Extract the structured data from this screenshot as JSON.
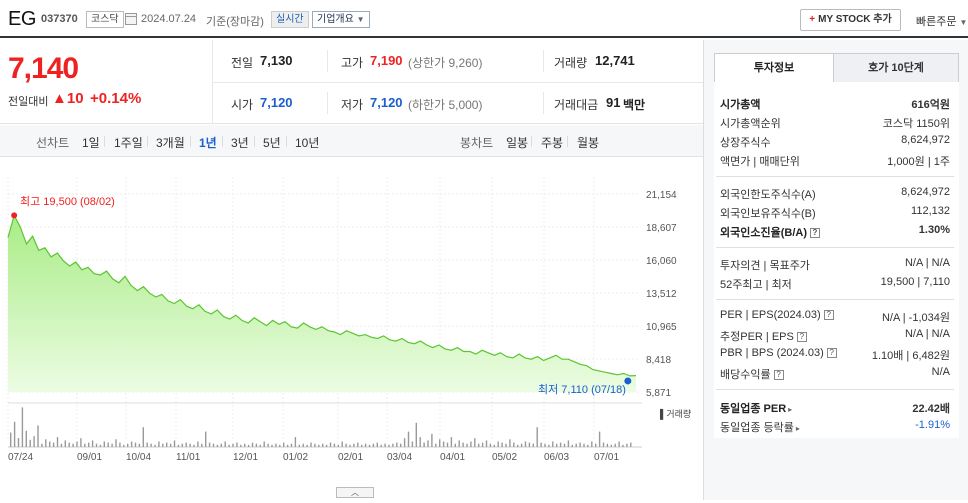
{
  "header": {
    "company_name": "EG",
    "code": "037370",
    "market": "코스닥",
    "date": "2024.07.24",
    "date_note": "기준(장마감)",
    "realtime": "실시간",
    "overview_label": "기업개요",
    "mystock_label": "MY STOCK 추가",
    "quick_order_label": "빠른주문"
  },
  "summary": {
    "current_price": "7,140",
    "prev_label": "전일대비",
    "change_arrow": "▲",
    "change_value": "10",
    "change_pct": "+0.14%",
    "row1": [
      {
        "label": "전일",
        "value": "7,130",
        "color": "black",
        "sub": ""
      },
      {
        "label": "고가",
        "value": "7,190",
        "color": "red",
        "sub": "(상한가 9,260)"
      },
      {
        "label": "거래량",
        "value": "12,741",
        "color": "black",
        "sub": ""
      }
    ],
    "row2": [
      {
        "label": "시가",
        "value": "7,120",
        "color": "blue",
        "sub": ""
      },
      {
        "label": "저가",
        "value": "7,120",
        "color": "blue",
        "sub": "(하한가 5,000)"
      },
      {
        "label": "거래대금",
        "value": "91",
        "color": "black",
        "sub": "백만"
      }
    ]
  },
  "toolbar": {
    "line_label": "선차트",
    "line_periods": [
      "1일",
      "1주일",
      "3개월",
      "1년",
      "3년",
      "5년",
      "10년"
    ],
    "active_period": "1년",
    "candle_label": "봉차트",
    "candle_periods": [
      "일봉",
      "주봉",
      "월봉"
    ]
  },
  "chart_data": {
    "type": "area",
    "y_ticks": [
      "21,154",
      "18,607",
      "16,060",
      "13,512",
      "10,965",
      "8,418",
      "5,871"
    ],
    "y_range": [
      5871,
      21154
    ],
    "x_ticks": [
      "07/24",
      "09/01",
      "10/04",
      "11/01",
      "12/01",
      "01/02",
      "02/01",
      "03/04",
      "04/01",
      "05/02",
      "06/03",
      "07/01"
    ],
    "high_annotation": "최고 19,500 (08/02)",
    "low_annotation": "최저 7,110 (07/18)",
    "volume_label": "거래량",
    "series": [
      {
        "values": [
          17800,
          19500,
          18600,
          17300,
          17900,
          16800,
          17000,
          16300,
          16600,
          16000,
          15600,
          15900,
          15300,
          15500,
          15000,
          14900,
          15200,
          14600,
          14300,
          14800,
          14100,
          13700,
          14000,
          13500,
          13200,
          13400,
          12900,
          12700,
          13000,
          12500,
          12300,
          12600,
          12100,
          11900,
          12200,
          11700,
          11500,
          11800,
          11400,
          11200,
          11600,
          11300,
          11000,
          11400,
          11100,
          11300,
          10900,
          10800,
          11200,
          10900,
          10700,
          10900,
          10600,
          10500,
          10300,
          10600,
          10400,
          10200,
          10300,
          10100,
          10000,
          10200,
          9900,
          9800,
          10000,
          9700,
          9600,
          9800,
          9500,
          9300,
          9500,
          9200,
          9100,
          9300,
          9000,
          9000,
          8800,
          9100,
          8900,
          8700,
          8900,
          8600,
          8500,
          8800,
          8500,
          8400,
          8600,
          8300,
          8500,
          8700,
          8400,
          8400,
          8200,
          8000,
          7900,
          7600,
          7500,
          7400,
          7300,
          7200,
          7300,
          7110,
          7140
        ]
      }
    ]
  },
  "right_panel": {
    "tabs": [
      "투자정보",
      "호가 10단계"
    ],
    "active_tab": "투자정보",
    "group1": [
      {
        "label": "시가총액",
        "value": "616억원",
        "label_bold": true,
        "value_bold": true
      },
      {
        "label": "시가총액순위",
        "value": "코스닥 1150위"
      },
      {
        "label": "상장주식수",
        "value": "8,624,972"
      },
      {
        "label": "액면가 | 매매단위",
        "value": "1,000원 | 1주"
      }
    ],
    "group2": [
      {
        "label": "외국인한도주식수(A)",
        "value": "8,624,972"
      },
      {
        "label": "외국인보유주식수(B)",
        "value": "112,132"
      },
      {
        "label": "외국인소진율(B/A)",
        "value": "1.30%",
        "label_bold": true,
        "value_bold": true,
        "help": "?"
      }
    ],
    "group3": [
      {
        "label": "투자의견 | 목표주가",
        "value": "N/A | N/A"
      },
      {
        "label": "52주최고 | 최저",
        "value": "19,500 | 7,110"
      }
    ],
    "group4": [
      {
        "label": "PER | EPS(2024.03)",
        "value": "N/A | -1,034원",
        "help": "?"
      },
      {
        "label": "추정PER | EPS",
        "value": "N/A | N/A",
        "help": "?"
      },
      {
        "label": "PBR | BPS (2024.03)",
        "value": "1.10배 | 6,482원",
        "help": "?"
      },
      {
        "label": "배당수익률",
        "value": "N/A",
        "help": "?"
      }
    ],
    "group5": [
      {
        "label": "동일업종 PER",
        "value": "22.42배",
        "label_bold": true,
        "value_bold": true
      },
      {
        "label": "동일업종 등락률",
        "value": "-1.91%",
        "value_color": "blue"
      }
    ]
  },
  "chart_toggle": "︿"
}
